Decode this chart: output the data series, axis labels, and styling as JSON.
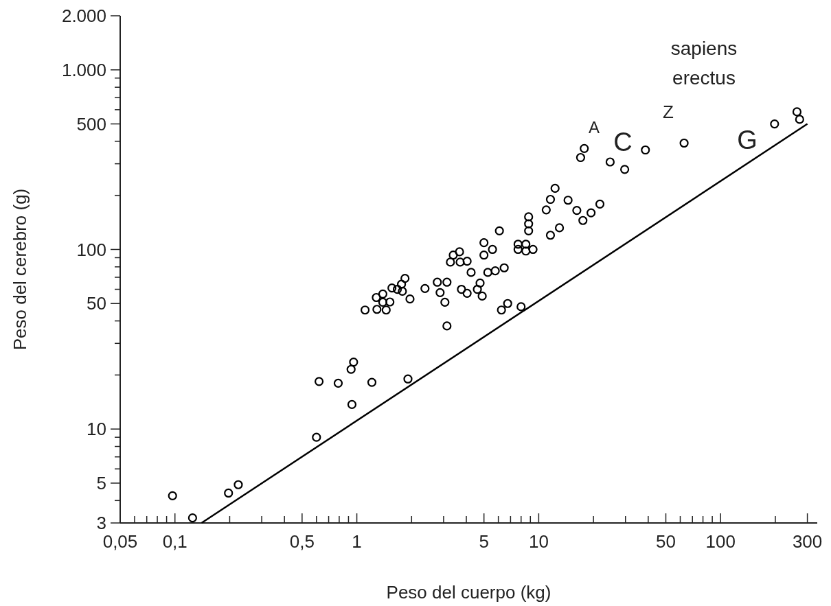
{
  "chart_data": {
    "type": "scatter",
    "xlabel": "Peso del cuerpo (kg)",
    "ylabel": "Peso del cerebro (g)",
    "log": "xy",
    "grid": false,
    "xlim": [
      0.05,
      340
    ],
    "ylim": [
      3,
      2000
    ],
    "xticks": [
      {
        "value": 0.05,
        "label": "0,05"
      },
      {
        "value": 0.06,
        "label": null
      },
      {
        "value": 0.07,
        "label": null
      },
      {
        "value": 0.08,
        "label": null
      },
      {
        "value": 0.09,
        "label": null
      },
      {
        "value": 0.1,
        "label": "0,1"
      },
      {
        "value": 0.2,
        "label": null
      },
      {
        "value": 0.3,
        "label": null
      },
      {
        "value": 0.4,
        "label": null
      },
      {
        "value": 0.5,
        "label": "0,5"
      },
      {
        "value": 0.6,
        "label": null
      },
      {
        "value": 0.7,
        "label": null
      },
      {
        "value": 0.8,
        "label": null
      },
      {
        "value": 0.9,
        "label": null
      },
      1,
      {
        "value": 2,
        "label": null
      },
      {
        "value": 3,
        "label": null
      },
      {
        "value": 4,
        "label": null
      },
      5,
      {
        "value": 6,
        "label": null
      },
      {
        "value": 7,
        "label": null
      },
      {
        "value": 8,
        "label": null
      },
      {
        "value": 9,
        "label": null
      },
      10,
      {
        "value": 20,
        "label": null
      },
      {
        "value": 30,
        "label": null
      },
      {
        "value": 40,
        "label": null
      },
      50,
      {
        "value": 60,
        "label": null
      },
      {
        "value": 70,
        "label": null
      },
      {
        "value": 80,
        "label": null
      },
      {
        "value": 90,
        "label": null
      },
      100,
      {
        "value": 200,
        "label": null
      },
      300
    ],
    "yticks": [
      3,
      {
        "value": 4,
        "label": null
      },
      5,
      {
        "value": 6,
        "label": null
      },
      {
        "value": 7,
        "label": null
      },
      {
        "value": 8,
        "label": null
      },
      {
        "value": 9,
        "label": null
      },
      10,
      {
        "value": 20,
        "label": null
      },
      {
        "value": 30,
        "label": null
      },
      {
        "value": 40,
        "label": null
      },
      50,
      {
        "value": 60,
        "label": null
      },
      {
        "value": 70,
        "label": null
      },
      {
        "value": 80,
        "label": null
      },
      {
        "value": 90,
        "label": null
      },
      100,
      {
        "value": 200,
        "label": null
      },
      {
        "value": 300,
        "label": null
      },
      {
        "value": 400,
        "label": null
      },
      500,
      {
        "value": 600,
        "label": null
      },
      {
        "value": 700,
        "label": null
      },
      {
        "value": 800,
        "label": null
      },
      {
        "value": 900,
        "label": null
      },
      {
        "value": 1000,
        "label": "1.000"
      },
      {
        "value": 2000,
        "label": "2.000"
      }
    ],
    "series": [
      {
        "marker": "circle",
        "color": "#000000",
        "x": [
          0.097,
          0.125,
          0.197,
          0.223,
          0.6,
          0.62,
          0.79,
          0.93,
          0.96,
          0.94,
          1.21,
          1.91,
          1.11,
          1.29,
          1.45,
          1.28,
          1.39,
          1.39,
          1.52,
          1.56,
          1.67,
          1.78,
          1.76,
          1.84,
          1.96,
          2.37,
          2.77,
          3.13,
          2.87,
          3.05,
          3.13,
          3.27,
          3.39,
          3.67,
          3.7,
          4.04,
          4.25,
          3.76,
          4.04,
          4.6,
          4.76,
          4.89,
          5.0,
          5.0,
          5.57,
          5.25,
          5.77,
          6.46,
          6.08,
          6.24,
          6.75,
          8.0,
          7.7,
          8.5,
          9.3,
          8.5,
          7.7,
          8.8,
          8.8,
          8.8,
          11.0,
          11.6,
          12.3,
          14.5,
          16.2,
          17.5,
          19.4,
          21.7,
          11.6,
          13.0,
          17.8,
          17.0,
          24.7,
          29.7,
          38.6,
          63,
          198,
          263,
          272
        ],
        "values": [
          4.25,
          3.2,
          4.4,
          4.9,
          9.0,
          18.4,
          18,
          21.5,
          23.6,
          13.7,
          18.2,
          19,
          46,
          46.4,
          46,
          54,
          50.8,
          56.5,
          51,
          61,
          60,
          58.5,
          64,
          69,
          53,
          60.6,
          65.7,
          65.7,
          57.5,
          50.8,
          37.5,
          85,
          93,
          97,
          85,
          86,
          74.5,
          60,
          57,
          60,
          65,
          55,
          109,
          93,
          100,
          74.5,
          76,
          79,
          127,
          46,
          50,
          48,
          107,
          107,
          100,
          98,
          100,
          152,
          139,
          127,
          166,
          190,
          219,
          188,
          165,
          145,
          160,
          179,
          120,
          132,
          365,
          325,
          307,
          279,
          358,
          391,
          500,
          584,
          530
        ]
      },
      {
        "type": "line",
        "color": "#000000",
        "x": [
          0.14,
          300
        ],
        "values": [
          3,
          500
        ]
      }
    ],
    "annotations": [
      "A",
      "C",
      "Z",
      "G",
      "sapiens",
      "erectus"
    ]
  }
}
